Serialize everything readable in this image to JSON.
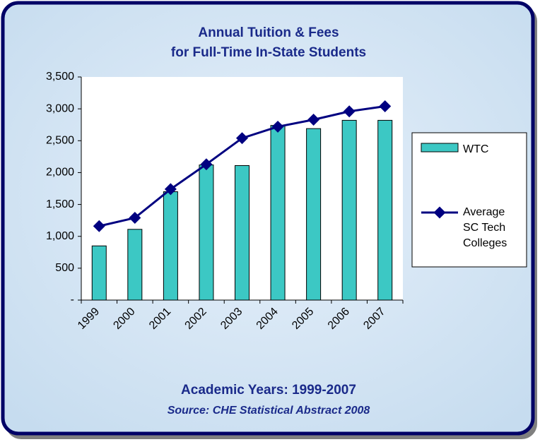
{
  "chart_data": {
    "type": "bar-line",
    "title": [
      "Annual Tuition & Fees",
      "for Full-Time In-State Students"
    ],
    "footer": [
      "Academic Years: 1999-2007",
      "Source: CHE Statistical Abstract 2008"
    ],
    "categories": [
      "1999",
      "2000",
      "2001",
      "2002",
      "2003",
      "2004",
      "2005",
      "2006",
      "2007"
    ],
    "series": [
      {
        "name": "WTC",
        "type": "bar",
        "color": "#3cc8c4",
        "values": [
          850,
          1110,
          1700,
          2120,
          2110,
          2740,
          2690,
          2820,
          2820
        ]
      },
      {
        "name": "Average SC Tech Colleges",
        "type": "line",
        "color": "#000080",
        "values": [
          1160,
          1290,
          1740,
          2130,
          2540,
          2720,
          2830,
          2960,
          3040
        ]
      }
    ],
    "ylim": [
      0,
      3500
    ],
    "yticks": [
      {
        "value": 0,
        "label": "-"
      },
      500,
      {
        "value": 1000,
        "label": "1,000"
      },
      {
        "value": 1500,
        "label": "1,500"
      },
      {
        "value": 2000,
        "label": "2,000"
      },
      {
        "value": 2500,
        "label": "2,500"
      },
      {
        "value": 3000,
        "label": "3,000"
      },
      {
        "value": 3500,
        "label": "3,500"
      }
    ],
    "grid": false
  }
}
